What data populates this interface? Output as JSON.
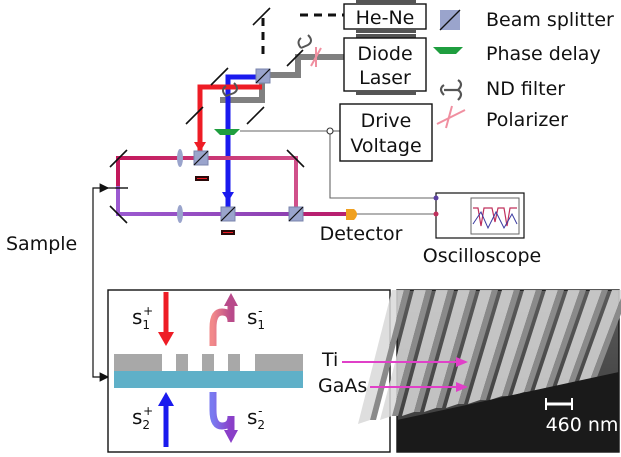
{
  "lasers": {
    "hene": "He-Ne",
    "diode_line1": "Diode",
    "diode_line2": "Laser"
  },
  "drive": {
    "line1": "Drive",
    "line2": "Voltage"
  },
  "labels": {
    "detector": "Detector",
    "oscilloscope": "Oscilloscope",
    "sample": "Sample",
    "ti": "Ti",
    "gaas": "GaAs",
    "scale_bar": "460 nm"
  },
  "legend": [
    {
      "key": "beam_splitter",
      "label": "Beam splitter",
      "icon": "beam-splitter-icon"
    },
    {
      "key": "phase_delay",
      "label": "Phase delay",
      "icon": "phase-delay-icon"
    },
    {
      "key": "nd_filter",
      "label": "ND filter",
      "icon": "nd-filter-icon"
    },
    {
      "key": "polarizer",
      "label": "Polarizer",
      "icon": "polarizer-icon"
    }
  ],
  "inset": {
    "s1_plus": {
      "base": "s",
      "sub": "1",
      "sup": "+"
    },
    "s1_minus": {
      "base": "s",
      "sub": "1",
      "sup": "-"
    },
    "s2_plus": {
      "base": "s",
      "sub": "2",
      "sup": "+"
    },
    "s2_minus": {
      "base": "s",
      "sub": "2",
      "sup": "-"
    }
  },
  "colors": {
    "red_beam": "#ee1c25",
    "blue_beam": "#1a1aee",
    "crimson_arm": "#c2185b",
    "violet_arm": "#8e44c8",
    "gray_beam": "#808080",
    "beam_splitter": "#9aa4cc",
    "phase_delay": "#1f9e3f",
    "polarizer": "#f08fa0",
    "metal": "#a8a8a8",
    "substrate": "#5fb0c8",
    "pink_arrow": "#e040c8",
    "detector": "#f0a020"
  }
}
